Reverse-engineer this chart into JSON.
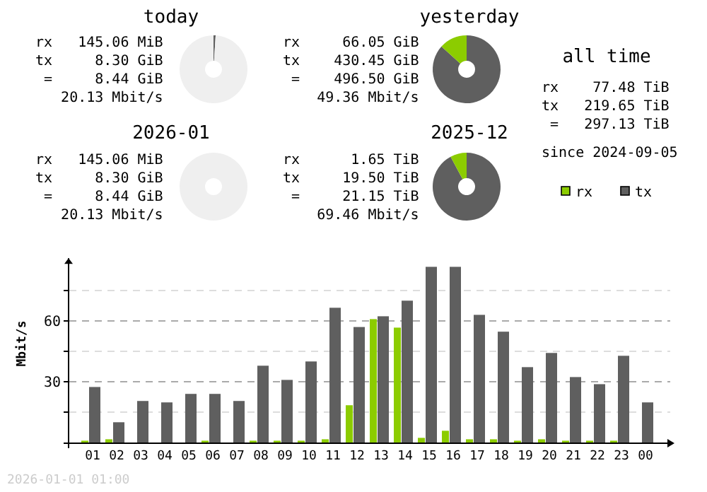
{
  "chart_data": [
    {
      "type": "donut",
      "title": "today",
      "categories": [
        null,
        null,
        null
      ],
      "values": [
        1,
        99,
        0
      ],
      "colors": [
        "#5f5f5f",
        "#efefef",
        "#8ccc00"
      ],
      "annotations": [
        "rx   145.06 MiB",
        "tx     8.30 GiB",
        " =     8.44 GiB",
        "   20.13 Mbit/s"
      ]
    },
    {
      "type": "donut",
      "title": "yesterday",
      "categories": [
        null,
        null,
        null
      ],
      "values": [
        86.7,
        0,
        13.3
      ],
      "colors": [
        "#5f5f5f",
        "#efefef",
        "#8ccc00"
      ],
      "annotations": [
        "rx     66.05 GiB",
        "tx    430.45 GiB",
        " =    496.50 GiB",
        "    49.36 Mbit/s"
      ]
    },
    {
      "type": "other",
      "title": "all time",
      "annotations": [
        "rx    77.48 TiB",
        "tx   219.65 TiB",
        " =   297.13 TiB",
        "since 2024-09-05"
      ]
    },
    {
      "type": "donut",
      "title": "2026-01",
      "categories": [
        null,
        null,
        null
      ],
      "values": [
        0,
        100,
        0
      ],
      "colors": [
        "#5f5f5f",
        "#efefef",
        "#8ccc00"
      ],
      "annotations": [
        "rx   145.06 MiB",
        "tx     8.30 GiB",
        " =     8.44 GiB",
        "   20.13 Mbit/s"
      ]
    },
    {
      "type": "donut",
      "title": "2025-12",
      "categories": [
        null,
        null,
        null
      ],
      "values": [
        92.2,
        0,
        7.8
      ],
      "colors": [
        "#5f5f5f",
        "#efefef",
        "#8ccc00"
      ],
      "annotations": [
        "rx      1.65 TiB",
        "tx     19.50 TiB",
        " =     21.15 TiB",
        "    69.46 Mbit/s"
      ]
    },
    {
      "type": "bar",
      "ylabel": "Mbit/s",
      "annotations": [
        "2026-01-01 01:00"
      ],
      "categories": [
        "01",
        "02",
        "03",
        "04",
        "05",
        "06",
        "07",
        "08",
        "09",
        "10",
        "11",
        "12",
        "13",
        "14",
        "15",
        "16",
        "17",
        "18",
        "19",
        "20",
        "21",
        "22",
        "23",
        "00"
      ],
      "series": [
        {
          "name": "rx",
          "color": "#8ccc00",
          "values": [
            0.9,
            1.6,
            0,
            0,
            0,
            0.9,
            0,
            0.9,
            0.9,
            0.9,
            1.6,
            18.4,
            60.9,
            56.7,
            2.3,
            5.8,
            1.6,
            1.6,
            0.9,
            1.6,
            0.9,
            0.9,
            0.9,
            0
          ]
        },
        {
          "name": "tx",
          "color": "#5f5f5f",
          "values": [
            27.4,
            10.0,
            20.5,
            19.8,
            24.0,
            24.0,
            20.5,
            37.9,
            30.9,
            40.0,
            66.5,
            57.0,
            62.3,
            70.0,
            86.7,
            86.7,
            63.0,
            54.7,
            37.2,
            44.2,
            32.3,
            28.8,
            42.8,
            19.8
          ]
        }
      ],
      "ylim": [
        0,
        91
      ],
      "yticks": [
        {
          "value": 15,
          "label": null
        },
        30,
        {
          "value": 45,
          "label": null
        },
        60,
        {
          "value": 75,
          "label": null
        }
      ],
      "grid": "y",
      "legend": "top right"
    }
  ]
}
